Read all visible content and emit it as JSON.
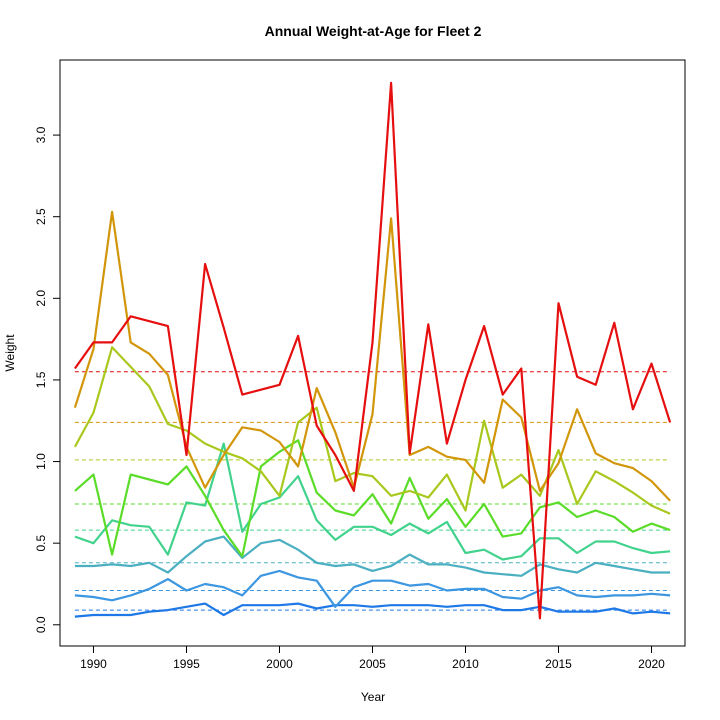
{
  "chart_data": {
    "type": "line",
    "title": "Annual Weight-at-Age for Fleet 2",
    "xlabel": "Year",
    "ylabel": "Weight",
    "xlim": [
      1988.2,
      2021.8
    ],
    "ylim": [
      -0.13,
      3.46
    ],
    "xticks": [
      1990,
      1995,
      2000,
      2005,
      2010,
      2015,
      2020
    ],
    "yticks": [
      0.0,
      0.5,
      1.0,
      1.5,
      2.0,
      2.5,
      3.0
    ],
    "ytick_labels": [
      "0.0",
      "0.5",
      "1.0",
      "1.5",
      "2.0",
      "2.5",
      "3.0"
    ],
    "grid": false,
    "years": [
      1989,
      1990,
      1991,
      1992,
      1993,
      1994,
      1995,
      1996,
      1997,
      1998,
      1999,
      2000,
      2001,
      2002,
      2003,
      2004,
      2005,
      2006,
      2007,
      2008,
      2009,
      2010,
      2011,
      2012,
      2013,
      2014,
      2015,
      2016,
      2017,
      2018,
      2019,
      2020,
      2021
    ],
    "series": [
      {
        "color": "#1E78E6",
        "mean": 0.09,
        "values": [
          0.05,
          0.06,
          0.06,
          0.06,
          0.08,
          0.09,
          0.11,
          0.13,
          0.06,
          0.12,
          0.12,
          0.12,
          0.13,
          0.1,
          0.12,
          0.12,
          0.11,
          0.12,
          0.12,
          0.12,
          0.11,
          0.12,
          0.12,
          0.09,
          0.09,
          0.11,
          0.08,
          0.08,
          0.08,
          0.1,
          0.07,
          0.08,
          0.07
        ]
      },
      {
        "color": "#3C96E0",
        "mean": 0.21,
        "values": [
          0.18,
          0.17,
          0.15,
          0.18,
          0.22,
          0.28,
          0.21,
          0.25,
          0.23,
          0.18,
          0.3,
          0.33,
          0.29,
          0.27,
          0.11,
          0.23,
          0.27,
          0.27,
          0.24,
          0.25,
          0.21,
          0.22,
          0.22,
          0.17,
          0.16,
          0.21,
          0.23,
          0.18,
          0.17,
          0.18,
          0.18,
          0.19,
          0.18
        ]
      },
      {
        "color": "#4AAFC0",
        "mean": 0.38,
        "values": [
          0.36,
          0.36,
          0.37,
          0.36,
          0.38,
          0.32,
          0.42,
          0.51,
          0.54,
          0.41,
          0.5,
          0.52,
          0.46,
          0.38,
          0.36,
          0.37,
          0.33,
          0.36,
          0.43,
          0.37,
          0.37,
          0.35,
          0.32,
          0.31,
          0.3,
          0.37,
          0.34,
          0.32,
          0.38,
          0.36,
          0.34,
          0.32,
          0.32
        ]
      },
      {
        "color": "#41D28C",
        "mean": 0.58,
        "values": [
          0.54,
          0.5,
          0.64,
          0.61,
          0.6,
          0.43,
          0.75,
          0.73,
          1.11,
          0.57,
          0.74,
          0.78,
          0.91,
          0.64,
          0.52,
          0.6,
          0.6,
          0.55,
          0.62,
          0.56,
          0.63,
          0.44,
          0.46,
          0.4,
          0.42,
          0.53,
          0.53,
          0.44,
          0.51,
          0.51,
          0.47,
          0.44,
          0.45
        ]
      },
      {
        "color": "#5ADC28",
        "mean": 0.74,
        "values": [
          0.82,
          0.92,
          0.43,
          0.92,
          0.89,
          0.86,
          0.97,
          0.79,
          0.58,
          0.42,
          0.97,
          1.06,
          1.13,
          0.81,
          0.7,
          0.67,
          0.8,
          0.62,
          0.9,
          0.65,
          0.77,
          0.6,
          0.74,
          0.54,
          0.56,
          0.72,
          0.75,
          0.66,
          0.7,
          0.66,
          0.57,
          0.62,
          0.58
        ]
      },
      {
        "color": "#A8C81E",
        "mean": 1.01,
        "values": [
          1.09,
          1.3,
          1.7,
          1.58,
          1.46,
          1.23,
          1.19,
          1.11,
          1.06,
          1.02,
          0.94,
          0.79,
          1.24,
          1.33,
          0.88,
          0.93,
          0.91,
          0.79,
          0.82,
          0.78,
          0.92,
          0.7,
          1.25,
          0.84,
          0.92,
          0.79,
          1.07,
          0.74,
          0.94,
          0.88,
          0.81,
          0.73,
          0.68
        ]
      },
      {
        "color": "#D2960A",
        "mean": 1.24,
        "values": [
          1.33,
          1.69,
          2.53,
          1.73,
          1.66,
          1.53,
          1.09,
          0.84,
          1.04,
          1.21,
          1.19,
          1.12,
          0.97,
          1.45,
          1.18,
          0.84,
          1.29,
          2.49,
          1.04,
          1.09,
          1.03,
          1.01,
          0.87,
          1.38,
          1.27,
          0.82,
          0.99,
          1.32,
          1.05,
          0.99,
          0.96,
          0.88,
          0.76
        ]
      },
      {
        "color": "#E60F0F",
        "mean": 1.55,
        "values": [
          1.57,
          1.73,
          1.73,
          1.89,
          1.86,
          1.83,
          1.04,
          2.21,
          1.82,
          1.41,
          1.44,
          1.47,
          1.77,
          1.22,
          1.04,
          0.82,
          1.73,
          3.32,
          1.05,
          1.84,
          1.11,
          1.5,
          1.83,
          1.41,
          1.57,
          0.04,
          1.97,
          1.52,
          1.47,
          1.85,
          1.32,
          1.6,
          1.24
        ]
      }
    ]
  }
}
